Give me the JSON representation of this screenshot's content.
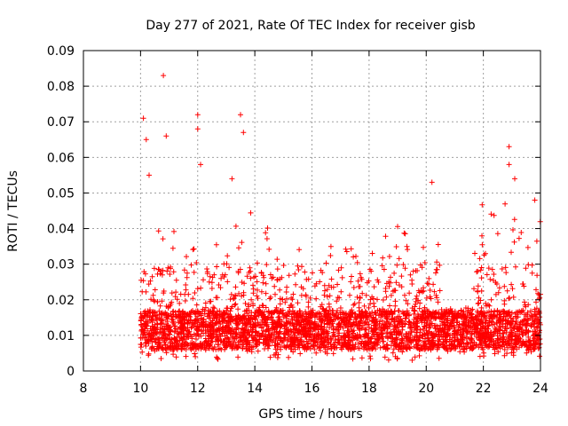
{
  "chart_data": {
    "type": "scatter",
    "title": "Day 277 of 2021, Rate Of TEC Index for receiver gisb",
    "xlabel": "GPS time / hours",
    "ylabel": "ROTI / TECUs",
    "xlim": [
      8,
      24
    ],
    "ylim": [
      0,
      0.09
    ],
    "xticks": [
      8,
      10,
      12,
      14,
      16,
      18,
      20,
      22,
      24
    ],
    "yticks": [
      0,
      0.01,
      0.02,
      0.03,
      0.04,
      0.05,
      0.06,
      0.07,
      0.08,
      0.09
    ],
    "xtick_labels": [
      "8",
      "10",
      "12",
      "14",
      "16",
      "18",
      "20",
      "22",
      "24"
    ],
    "ytick_labels": [
      "0",
      "0.01",
      "0.02",
      "0.03",
      "0.04",
      "0.05",
      "0.06",
      "0.07",
      "0.08",
      "0.09"
    ],
    "grid": true,
    "marker": "+",
    "color": "#ff0000",
    "series": [
      {
        "name": "ROTI",
        "notable_points": [
          {
            "x": 10.1,
            "y": 0.071
          },
          {
            "x": 10.2,
            "y": 0.065
          },
          {
            "x": 10.3,
            "y": 0.055
          },
          {
            "x": 10.8,
            "y": 0.083
          },
          {
            "x": 10.9,
            "y": 0.066
          },
          {
            "x": 12.0,
            "y": 0.072
          },
          {
            "x": 12.0,
            "y": 0.068
          },
          {
            "x": 12.1,
            "y": 0.058
          },
          {
            "x": 13.2,
            "y": 0.054
          },
          {
            "x": 13.5,
            "y": 0.072
          },
          {
            "x": 13.6,
            "y": 0.067
          },
          {
            "x": 20.2,
            "y": 0.053
          },
          {
            "x": 22.9,
            "y": 0.063
          },
          {
            "x": 22.9,
            "y": 0.058
          },
          {
            "x": 23.1,
            "y": 0.054
          },
          {
            "x": 23.8,
            "y": 0.048
          }
        ],
        "density_bands": [
          {
            "x_from": 10.0,
            "x_to": 11.5,
            "y_min": 0.003,
            "y_max": 0.045
          },
          {
            "x_from": 11.5,
            "y_max_note": "",
            "x_to": 14.5,
            "y_min": 0.003,
            "y_max": 0.045
          },
          {
            "x_from": 14.5,
            "x_to": 18.5,
            "y_min": 0.003,
            "y_max": 0.035
          },
          {
            "x_from": 18.5,
            "x_to": 20.5,
            "y_min": 0.003,
            "y_max": 0.043
          },
          {
            "x_from": 20.5,
            "x_to": 21.6,
            "y_min": 0.005,
            "y_max": 0.018
          },
          {
            "x_from": 21.6,
            "x_to": 24.0,
            "y_min": 0.004,
            "y_max": 0.047
          }
        ]
      }
    ]
  }
}
